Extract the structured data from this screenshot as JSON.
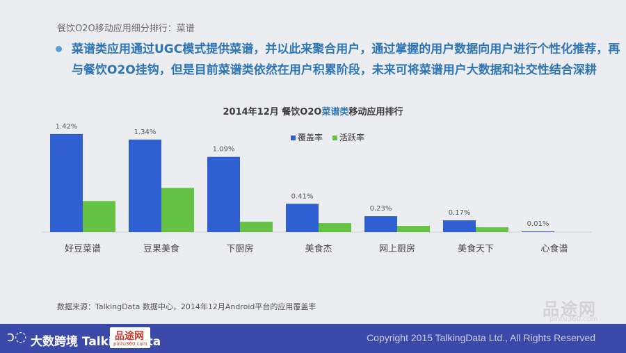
{
  "header": {
    "breadcrumb": "餐饮O2O移动应用细分排行：菜谱",
    "lead": "菜谱类应用通过UGC模式提供菜谱，并以此来聚合用户，通过掌握的用户数据向用户进行个性化推荐，再与餐饮O2O挂钩，但是目前菜谱类依然在用户积累阶段，未来可将菜谱用户大数据和社交性结合深耕"
  },
  "chart_title": {
    "prefix": "2014年12月 餐饮O2O",
    "highlight": "菜谱类",
    "suffix": "移动应用排行"
  },
  "chart_data": {
    "type": "bar",
    "title": "2014年12月 餐饮O2O菜谱类移动应用排行",
    "categories": [
      "好豆菜谱",
      "豆果美食",
      "下厨房",
      "美食杰",
      "网上厨房",
      "美食天下",
      "心食谱"
    ],
    "series": [
      {
        "name": "覆盖率",
        "values": [
          1.42,
          1.34,
          1.09,
          0.41,
          0.23,
          0.17,
          0.01
        ],
        "color": "#2f5fd0"
      },
      {
        "name": "活跃率",
        "values": [
          0.45,
          0.64,
          0.15,
          0.13,
          0.09,
          0.07,
          0.0
        ],
        "color": "#66c244"
      }
    ],
    "data_labels": [
      "1.42%",
      "1.34%",
      "1.09%",
      "0.41%",
      "0.23%",
      "0.17%",
      "0.01%"
    ],
    "ylim": [
      0,
      1.6
    ],
    "grid": false,
    "legend_position": "top-center"
  },
  "source": "数据来源：TalkingData 数据中心，2014年12月Android平台的应用覆盖率",
  "footer": {
    "logo_text": "大数跨境 TalkingData",
    "copyright": "Copyright 2015 TalkingData Ltd., All Rights Reserved"
  },
  "watermark": {
    "cn": "品途网",
    "url": "pintu360.com"
  }
}
